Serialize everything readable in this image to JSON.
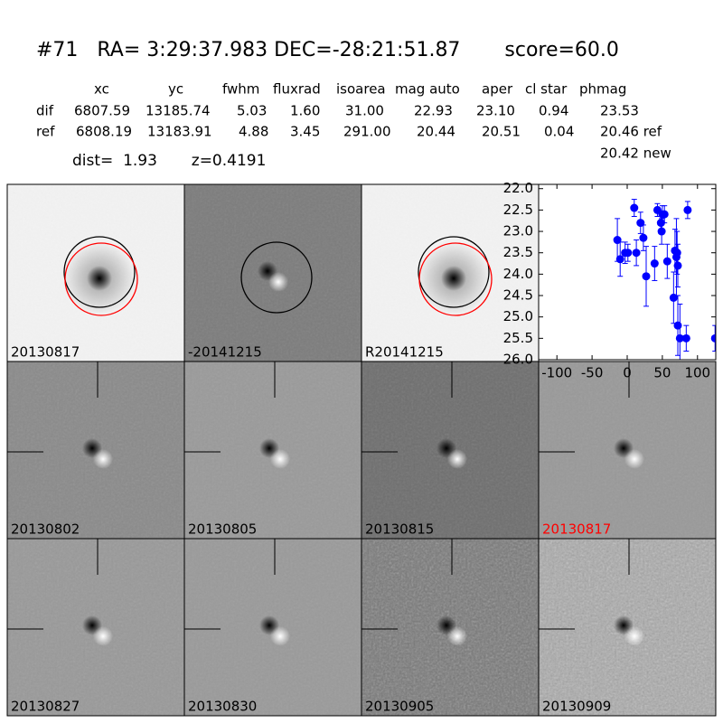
{
  "header": {
    "title": "#71   RA= 3:29:37.983 DEC=-28:21:51.87       score=60.0",
    "dist": "dist=  1.93       z=0.4191"
  },
  "table": {
    "columns": [
      "xc",
      "yc",
      "fwhm",
      "fluxrad",
      "isoarea",
      "mag auto",
      "aper",
      "cl star",
      "phmag"
    ],
    "rows": [
      [
        "dif",
        "6807.59",
        "13185.74",
        "5.03",
        "1.60",
        "31.00",
        "22.93",
        "23.10",
        "0.94",
        "23.53"
      ],
      [
        "ref",
        "6808.19",
        "13183.91",
        "4.88",
        "3.45",
        "291.00",
        "20.44",
        "20.51",
        "0.04",
        "20.46 ref"
      ]
    ],
    "extra": "20.42 new"
  },
  "panels": [
    {
      "label": "20130817",
      "label_color": "#000000"
    },
    {
      "label": "-20141215",
      "label_color": "#000000"
    },
    {
      "label": "R20141215",
      "label_color": "#000000"
    },
    {
      "label": "20130802",
      "label_color": "#000000"
    },
    {
      "label": "20130805",
      "label_color": "#000000"
    },
    {
      "label": "20130815",
      "label_color": "#000000"
    },
    {
      "label": "20130817",
      "label_color": "#ff0000"
    },
    {
      "label": "20130827",
      "label_color": "#000000"
    },
    {
      "label": "20130830",
      "label_color": "#000000"
    },
    {
      "label": "20130905",
      "label_color": "#000000"
    },
    {
      "label": "20130909",
      "label_color": "#000000"
    }
  ],
  "chart_data": {
    "type": "scatter",
    "color": "#0000ff",
    "x": [
      -14,
      -10,
      -3,
      1,
      10,
      13,
      19,
      23,
      27,
      39,
      43,
      48,
      50,
      49,
      53,
      57,
      66,
      68,
      70,
      71,
      72,
      72,
      75,
      84,
      86,
      125
    ],
    "values": [
      23.2,
      23.65,
      23.5,
      23.5,
      22.45,
      23.5,
      22.8,
      23.15,
      24.05,
      23.75,
      22.5,
      22.8,
      22.6,
      23.0,
      22.6,
      23.7,
      24.55,
      23.45,
      23.6,
      23.5,
      23.8,
      25.2,
      25.5,
      25.5,
      22.5,
      25.5
    ],
    "errors": [
      0.5,
      0.4,
      0.25,
      0.2,
      0.2,
      0.3,
      0.25,
      0.3,
      0.7,
      0.4,
      0.15,
      0.25,
      0.2,
      0.3,
      0.2,
      0.4,
      0.6,
      0.5,
      0.9,
      0.5,
      0.5,
      0.7,
      0.8,
      0.3,
      0.2,
      0.3
    ],
    "xlim": [
      -126,
      126
    ],
    "ylim": [
      26,
      21.9
    ],
    "xticks": [
      -100,
      -50,
      0,
      50,
      100
    ],
    "yticks": [
      {
        "value": 22,
        "label": "22.0"
      },
      22.5,
      {
        "value": 23,
        "label": "23.0"
      },
      23.5,
      {
        "value": 24,
        "label": "24.0"
      },
      24.5,
      {
        "value": 25,
        "label": "25.0"
      },
      25.5,
      {
        "value": 26,
        "label": "26.0"
      }
    ]
  }
}
